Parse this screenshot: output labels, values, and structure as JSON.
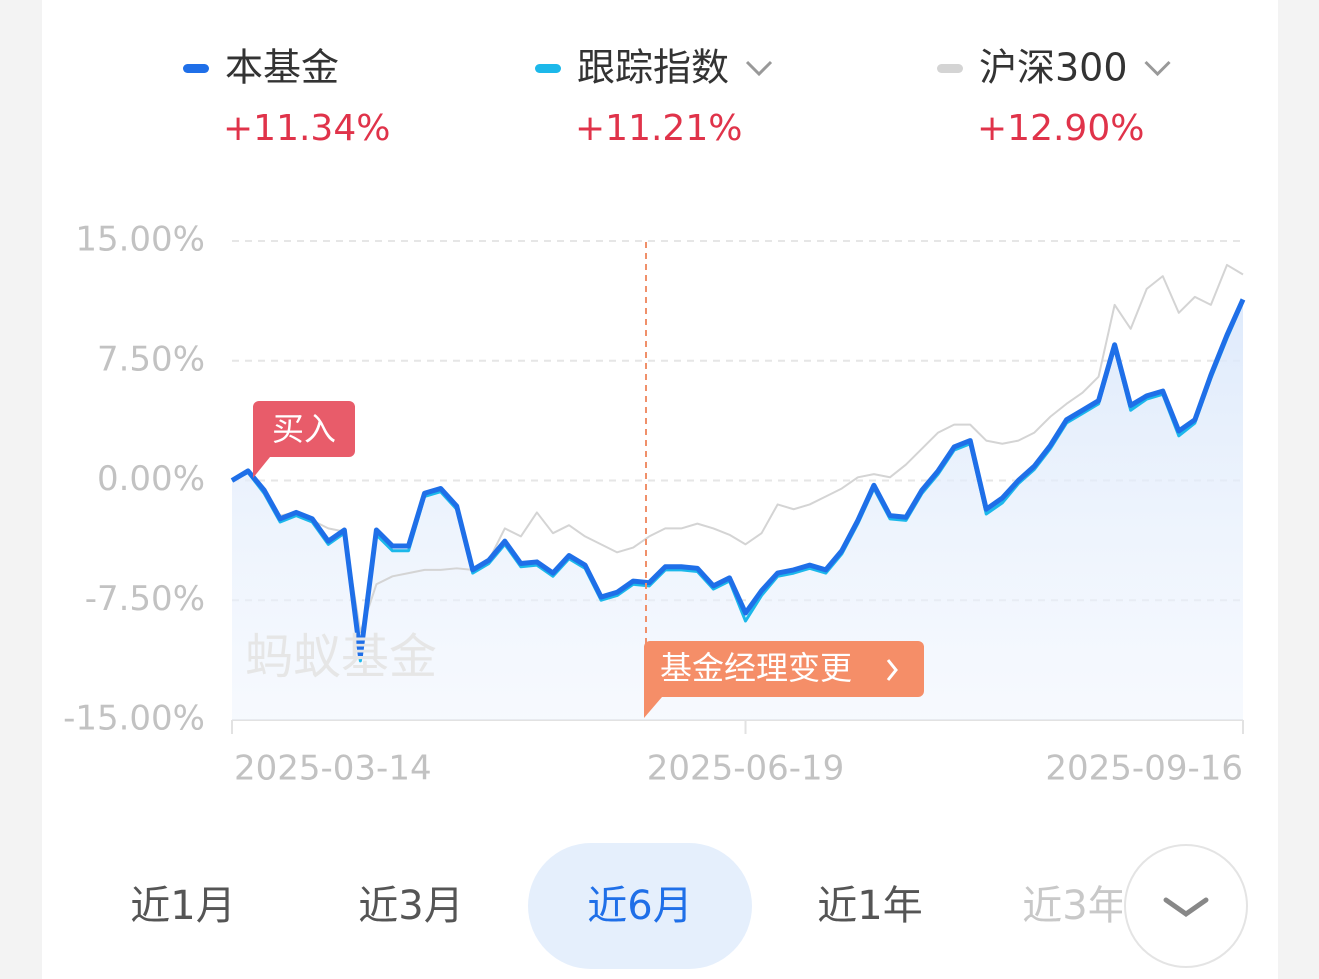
{
  "chart_data": {
    "type": "line",
    "categories": [
      "2025-03-14",
      null,
      null,
      null,
      null,
      null,
      null,
      null,
      null,
      null,
      null,
      null,
      null,
      null,
      null,
      null,
      null,
      null,
      null,
      null,
      null,
      null,
      null,
      null,
      null,
      null,
      null,
      null,
      null,
      null,
      null,
      null,
      "2025-06-19",
      null,
      null,
      null,
      null,
      null,
      null,
      null,
      null,
      null,
      null,
      null,
      null,
      null,
      null,
      null,
      null,
      null,
      null,
      null,
      null,
      null,
      null,
      null,
      null,
      null,
      null,
      null,
      null,
      null,
      null,
      "2025-09-16"
    ],
    "series": [
      {
        "name": "沪深300",
        "return": "+12.90%",
        "color": "#d4d4d4",
        "values": [
          0,
          0.6,
          -0.8,
          -2.2,
          -2.0,
          -2.5,
          -3.0,
          -3.2,
          -9.5,
          -6.5,
          -6.0,
          -5.8,
          -5.6,
          -5.6,
          -5.5,
          -5.6,
          -5.0,
          -3.0,
          -3.5,
          -2.0,
          -3.3,
          -2.8,
          -3.5,
          -4.0,
          -4.5,
          -4.2,
          -3.5,
          -3.0,
          -3.0,
          -2.7,
          -3.0,
          -3.4,
          -4.0,
          -3.3,
          -1.5,
          -1.8,
          -1.5,
          -1.0,
          -0.5,
          0.2,
          0.4,
          0.2,
          1.0,
          2.0,
          3.0,
          3.5,
          3.5,
          2.5,
          2.3,
          2.5,
          3.0,
          4.0,
          4.8,
          5.5,
          6.5,
          11.0,
          9.5,
          12.0,
          12.8,
          10.5,
          11.5,
          11.0,
          13.5,
          12.9
        ]
      },
      {
        "name": "跟踪指数",
        "return": "+11.21%",
        "color": "#1cb8ea",
        "values": [
          0,
          0.5,
          -0.8,
          -2.6,
          -2.2,
          -2.6,
          -4.0,
          -3.3,
          -11.3,
          -3.4,
          -4.4,
          -4.4,
          -1.0,
          -0.7,
          -1.8,
          -5.8,
          -5.2,
          -4.0,
          -5.4,
          -5.3,
          -6.0,
          -4.9,
          -5.5,
          -7.5,
          -7.2,
          -6.5,
          -6.6,
          -5.6,
          -5.6,
          -5.7,
          -6.8,
          -6.3,
          -8.8,
          -7.2,
          -6.0,
          -5.8,
          -5.5,
          -5.8,
          -4.6,
          -2.7,
          -0.5,
          -2.4,
          -2.5,
          -0.8,
          0.4,
          1.9,
          2.3,
          -2.1,
          -1.4,
          -0.2,
          0.7,
          2.0,
          3.6,
          4.2,
          4.8,
          8.3,
          4.4,
          5.1,
          5.4,
          2.8,
          3.6,
          6.4,
          8.9,
          11.21
        ]
      },
      {
        "name": "本基金",
        "return": "+11.34%",
        "color": "#1f6fe8",
        "values": [
          0,
          0.6,
          -0.6,
          -2.4,
          -2.0,
          -2.4,
          -3.8,
          -3.1,
          -11.0,
          -3.1,
          -4.1,
          -4.1,
          -0.8,
          -0.5,
          -1.6,
          -5.6,
          -5.0,
          -3.8,
          -5.2,
          -5.1,
          -5.8,
          -4.7,
          -5.3,
          -7.3,
          -7.0,
          -6.3,
          -6.4,
          -5.4,
          -5.4,
          -5.5,
          -6.6,
          -6.1,
          -8.3,
          -6.9,
          -5.8,
          -5.6,
          -5.3,
          -5.6,
          -4.4,
          -2.5,
          -0.3,
          -2.2,
          -2.3,
          -0.6,
          0.6,
          2.1,
          2.5,
          -1.8,
          -1.1,
          0,
          0.9,
          2.2,
          3.8,
          4.4,
          5.0,
          8.5,
          4.7,
          5.3,
          5.6,
          3.1,
          3.8,
          6.6,
          9.1,
          11.34
        ]
      }
    ],
    "ylim": [
      -15,
      15
    ],
    "yticks": [
      {
        "value": 15,
        "label": "15.00%"
      },
      {
        "value": 7.5,
        "label": "7.50%"
      },
      {
        "value": 0,
        "label": "0.00%"
      },
      {
        "value": -7.5,
        "label": "-7.50%"
      },
      {
        "value": -15,
        "label": "-15.00%"
      }
    ],
    "grid": true,
    "annotations": [
      "买入",
      "基金经理变更"
    ],
    "watermark": "蚂蚁基金"
  },
  "tabs": [
    "近1月",
    "近3月",
    "近6月",
    "近1年",
    "近3年"
  ],
  "selected_tab": "近6月"
}
